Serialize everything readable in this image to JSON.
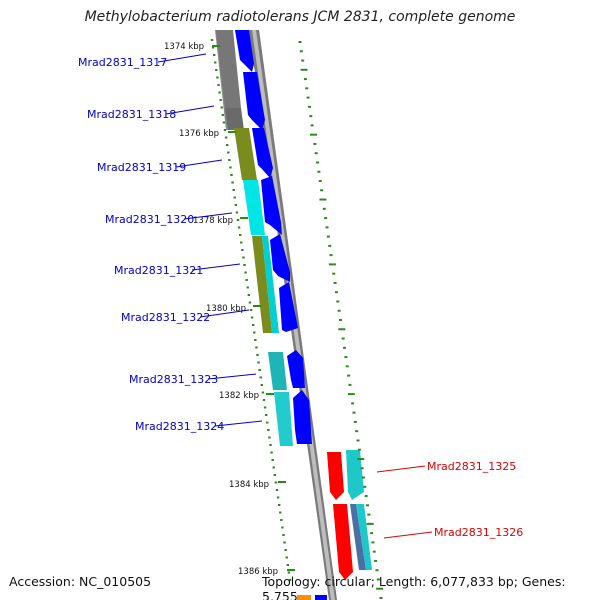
{
  "title": "Methylobacterium radiotolerans JCM 2831, complete genome",
  "accession": "Accession: NC_010505",
  "topology": "Topology: circular; Length: 6,077,833 bp; Genes: 5,755",
  "ticks": [
    "1374 kbp",
    "1376 kbp",
    "1378 kbp",
    "1380 kbp",
    "1382 kbp",
    "1384 kbp",
    "1386 kbp"
  ],
  "genes_forward": [
    "Mrad2831_1317",
    "Mrad2831_1318",
    "Mrad2831_1319",
    "Mrad2831_1320",
    "Mrad2831_1321",
    "Mrad2831_1322",
    "Mrad2831_1323",
    "Mrad2831_1324"
  ],
  "genes_reverse": [
    "Mrad2831_1325",
    "Mrad2831_1326"
  ],
  "colors": {
    "forward_label": "#0000cc",
    "reverse_label": "#dd0000",
    "gene_blue": "#0000ff",
    "gene_red": "#ff0000",
    "cog_gray": "#777777",
    "cog_olive": "#7b8c1e",
    "cog_cyan": "#00e5e5",
    "cog_teal": "#1fc8c8",
    "gc_skew": "#2a8a1a",
    "backbone": "#888888"
  }
}
